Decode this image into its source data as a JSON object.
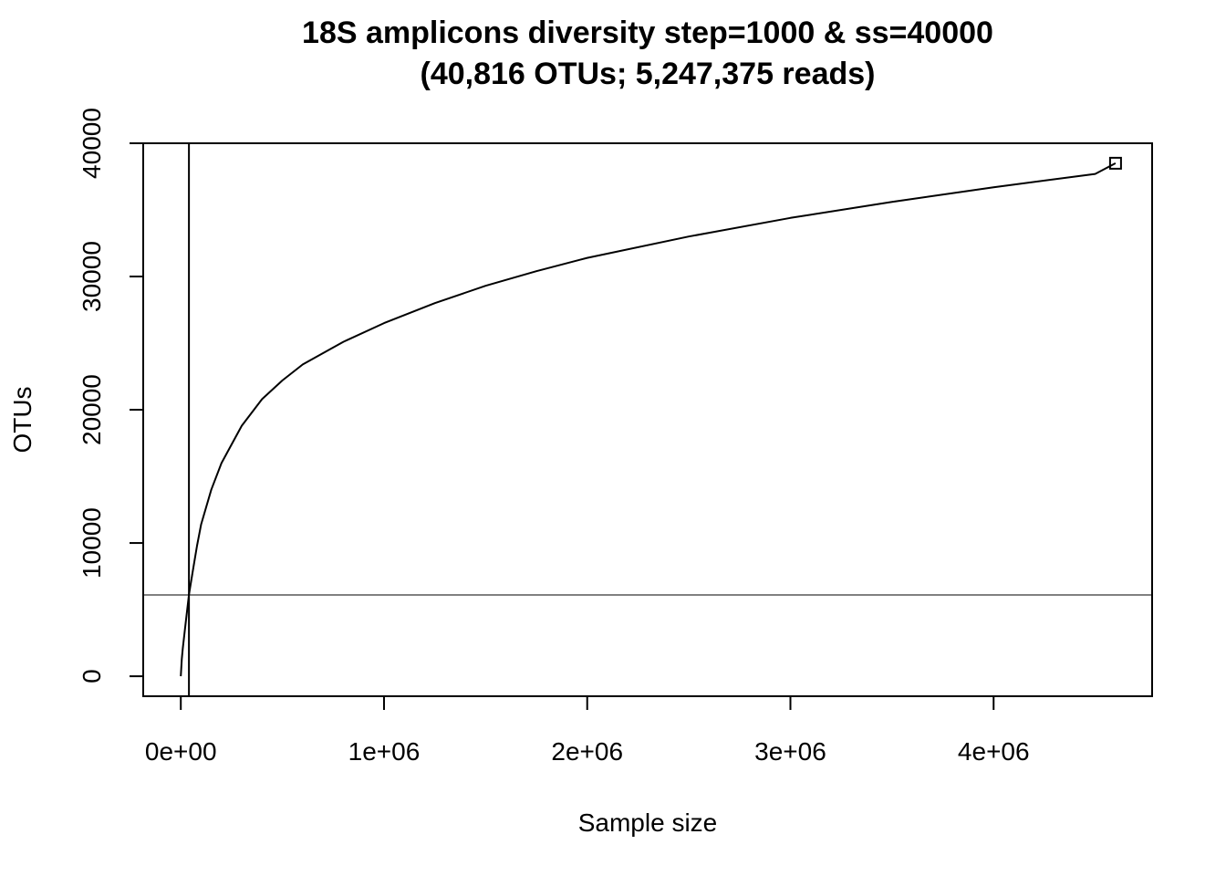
{
  "chart_data": {
    "type": "line",
    "title": "18S amplicons diversity step=1000 & ss=40000",
    "subtitle": "(40,816 OTUs; 5,247,375 reads)",
    "xlabel": "Sample size",
    "ylabel": "OTUs",
    "xlim": [
      -185000,
      4780000
    ],
    "ylim": [
      -1500,
      40000
    ],
    "x_ticks": [
      0,
      1000000,
      2000000,
      3000000,
      4000000
    ],
    "x_tick_labels": [
      "0e+00",
      "1e+06",
      "2e+06",
      "3e+06",
      "4e+06"
    ],
    "y_ticks": [
      0,
      10000,
      20000,
      30000,
      40000
    ],
    "y_tick_labels": [
      "0",
      "10000",
      "20000",
      "30000",
      "40000"
    ],
    "grid": false,
    "series": [
      {
        "x": [
          0,
          5000,
          10000,
          20000,
          40000,
          60000,
          80000,
          100000,
          150000,
          200000,
          300000,
          400000,
          500000,
          600000,
          800000,
          1000000,
          1250000,
          1500000,
          1750000,
          2000000,
          2500000,
          3000000,
          3500000,
          4000000,
          4500000,
          4600000
        ],
        "y": [
          0,
          1300,
          2100,
          3500,
          6100,
          8000,
          9800,
          11400,
          14000,
          16000,
          18800,
          20800,
          22200,
          23400,
          25100,
          26500,
          28000,
          29300,
          30400,
          31400,
          33000,
          34400,
          35600,
          36700,
          37700,
          38500
        ]
      }
    ],
    "end_marker": {
      "x": 4600000,
      "y": 38500,
      "shape": "square"
    },
    "vline": {
      "x": 40000
    },
    "hline": {
      "y": 6100
    },
    "color": "#000000"
  }
}
